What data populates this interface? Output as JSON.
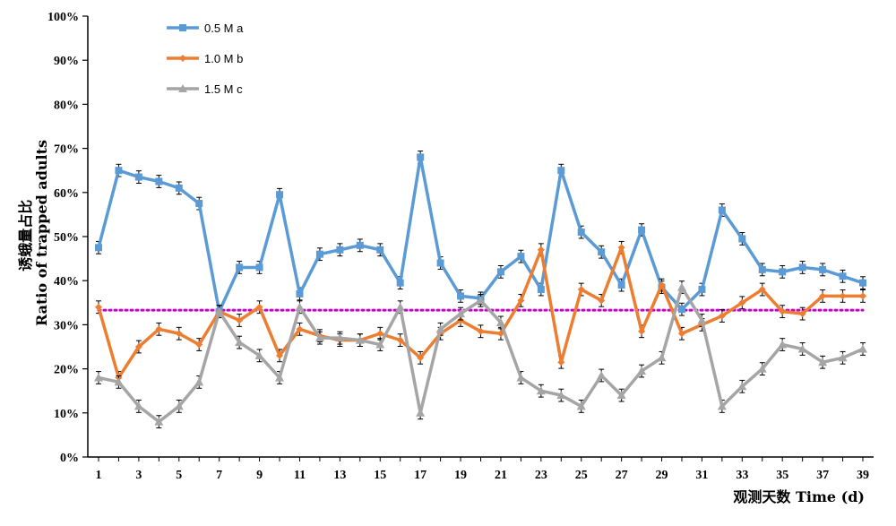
{
  "chart_data": {
    "type": "line",
    "xlabel": "观测天数 Time (d)",
    "ylabel": "诱蛾量占比 Ratio of trapped adults",
    "ylabel_zh": "诱蛾量占比",
    "ylabel_en": "Ratio of trapped adults",
    "ylim": [
      0,
      100
    ],
    "yticks": [
      "0%",
      "10%",
      "20%",
      "30%",
      "40%",
      "50%",
      "60%",
      "70%",
      "80%",
      "90%",
      "100%"
    ],
    "xlim": [
      1,
      39
    ],
    "xticks": [
      "1",
      "3",
      "5",
      "7",
      "9",
      "11",
      "13",
      "15",
      "17",
      "19",
      "21",
      "23",
      "25",
      "27",
      "29",
      "31",
      "33",
      "35",
      "37",
      "39"
    ],
    "grid": false,
    "legend_position": "top-left",
    "x": [
      1,
      2,
      3,
      4,
      5,
      6,
      7,
      8,
      9,
      10,
      11,
      12,
      13,
      14,
      15,
      16,
      17,
      18,
      19,
      20,
      21,
      22,
      23,
      24,
      25,
      26,
      27,
      28,
      29,
      30,
      31,
      32,
      33,
      34,
      35,
      36,
      37,
      38,
      39
    ],
    "series": [
      {
        "name": "0.5 M a",
        "color": "#5b9bd5",
        "marker": "square",
        "values": [
          47.5,
          65,
          63.5,
          62.5,
          61,
          57.5,
          33,
          43,
          43,
          59.5,
          37,
          46,
          47,
          48,
          47,
          39.5,
          68,
          44,
          36.5,
          36,
          42,
          45.5,
          38,
          65,
          51,
          46.5,
          39,
          51.5,
          38.5,
          33.5,
          38,
          56,
          49.5,
          42.5,
          42,
          43,
          42.5,
          41,
          39.5
        ]
      },
      {
        "name": "1.0 M b",
        "color": "#ed7d31",
        "marker": "diamond",
        "values": [
          34,
          18,
          25,
          29,
          28,
          25.5,
          33,
          31,
          34,
          23,
          29,
          27.5,
          26.5,
          26.5,
          28,
          26.5,
          22.5,
          28,
          31,
          28.5,
          28,
          35.5,
          47,
          21.5,
          38,
          35.5,
          47.5,
          28.5,
          39,
          28,
          30,
          32,
          35,
          38,
          33,
          32.5,
          36.5,
          36.5,
          36.5
        ]
      },
      {
        "name": "1.5 M c",
        "color": "#a5a5a5",
        "marker": "triangle",
        "values": [
          18,
          17,
          11.5,
          8,
          11.5,
          17,
          33,
          26,
          23,
          18,
          34,
          27,
          27,
          26.5,
          25.5,
          34,
          10,
          29,
          32.5,
          35.5,
          30.5,
          18,
          15,
          14,
          11.5,
          18.5,
          14,
          19.5,
          22.5,
          38.5,
          31,
          11.5,
          16,
          20,
          25.5,
          24.5,
          21.5,
          22.5,
          24.5
        ]
      }
    ],
    "reference_line": {
      "value": 33.3,
      "color": "#cc00cc",
      "style": "dotted"
    }
  }
}
